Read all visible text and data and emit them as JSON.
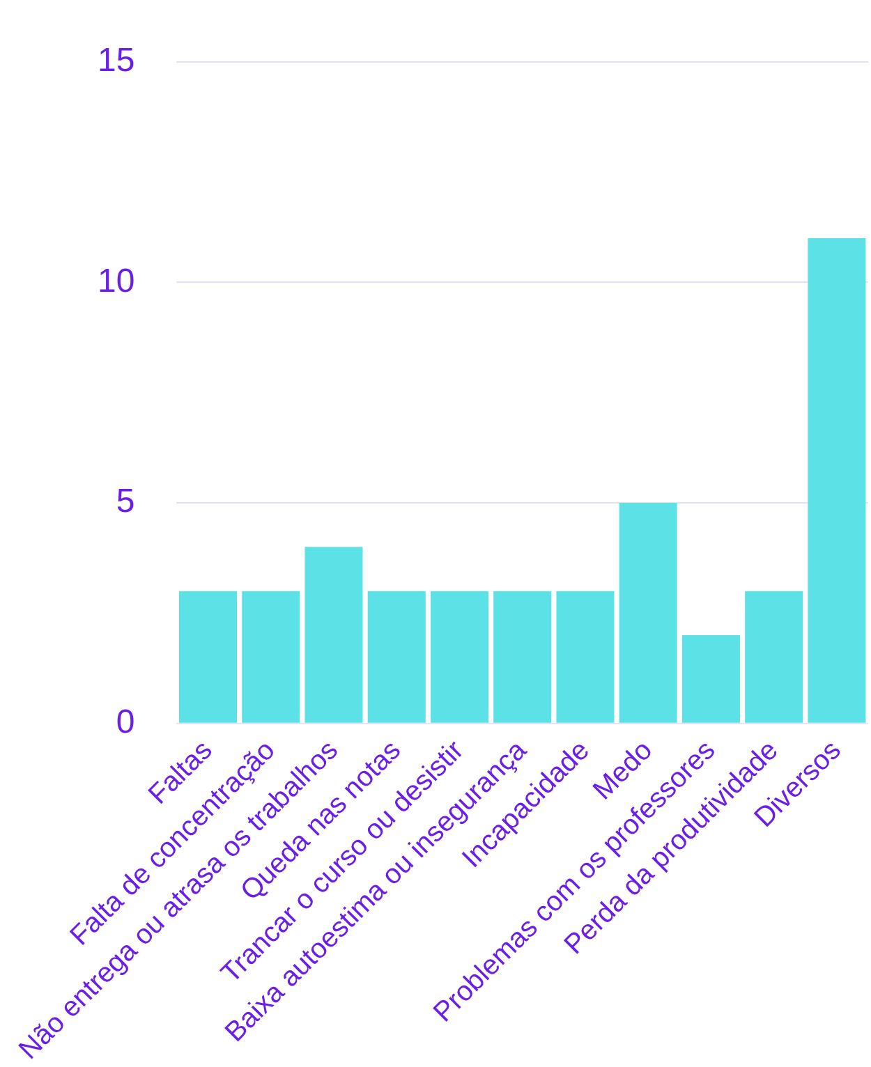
{
  "chart_data": {
    "type": "bar",
    "categories": [
      "Faltas",
      "Falta de concentração",
      "Não entrega ou atrasa os trabalhos",
      "Queda nas notas",
      "Trancar o curso ou desistir",
      "Baixa autoestima ou insegurança",
      "Incapacidade",
      "Medo",
      "Problemas com os professores",
      "Perda da produtividade",
      "Diversos"
    ],
    "values": [
      3,
      3,
      4,
      3,
      3,
      3,
      3,
      5,
      2,
      3,
      11
    ],
    "color": "#5ce1e6",
    "ylim": [
      0,
      15
    ],
    "yticks": [
      0,
      5,
      10,
      15
    ],
    "grid": "y",
    "legend": false
  }
}
